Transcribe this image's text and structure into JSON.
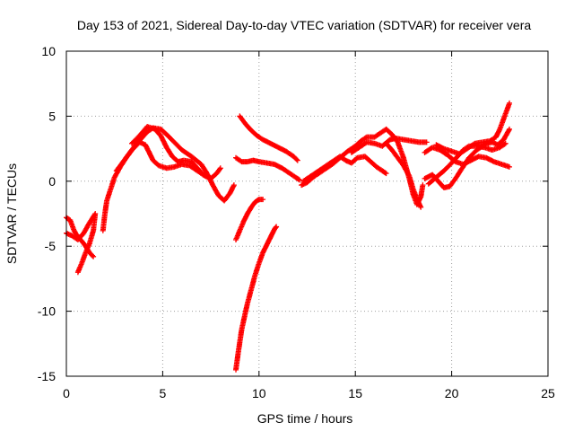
{
  "chart_data": {
    "type": "scatter",
    "title": "Day 153 of 2021, Sidereal Day-to-day VTEC variation (SDTVAR) for receiver vera",
    "xlabel": "GPS time / hours",
    "ylabel": "SDTVAR / TECUs",
    "xlim": [
      0,
      25
    ],
    "ylim": [
      -15,
      10
    ],
    "x_ticks": [
      0,
      5,
      10,
      15,
      20,
      25
    ],
    "x_tick_labels": [
      "0",
      "5",
      "10",
      "15",
      "20",
      "25"
    ],
    "y_ticks": [
      -15,
      -10,
      -5,
      0,
      5,
      10
    ],
    "y_tick_labels": [
      "-15",
      "-10",
      "-5",
      "0",
      "5",
      "10"
    ],
    "grid": true,
    "marker": "+",
    "color": "#ff0000",
    "series": [
      {
        "name": "arc-early-low",
        "points": [
          [
            0.0,
            -4.0
          ],
          [
            0.3,
            -4.2
          ],
          [
            0.6,
            -4.5
          ],
          [
            0.9,
            -4.0
          ],
          [
            1.2,
            -3.2
          ],
          [
            1.5,
            -2.5
          ],
          [
            1.4,
            -3.8
          ],
          [
            1.2,
            -4.8
          ],
          [
            1.0,
            -5.5
          ],
          [
            0.8,
            -6.3
          ],
          [
            0.6,
            -7.0
          ]
        ]
      },
      {
        "name": "arc-early-mid",
        "points": [
          [
            0.0,
            -2.8
          ],
          [
            0.2,
            -3.0
          ],
          [
            0.4,
            -3.8
          ],
          [
            0.6,
            -4.3
          ],
          [
            0.8,
            -4.6
          ],
          [
            1.0,
            -5.0
          ],
          [
            1.2,
            -5.5
          ],
          [
            1.4,
            -5.8
          ]
        ]
      },
      {
        "name": "arc-morning-rise",
        "points": [
          [
            1.9,
            -3.8
          ],
          [
            2.0,
            -2.5
          ],
          [
            2.1,
            -1.5
          ],
          [
            2.3,
            -0.6
          ],
          [
            2.5,
            0.3
          ],
          [
            2.8,
            1.1
          ],
          [
            3.1,
            1.8
          ],
          [
            3.5,
            2.6
          ],
          [
            3.9,
            3.3
          ],
          [
            4.2,
            3.8
          ],
          [
            4.5,
            4.1
          ],
          [
            4.9,
            4.0
          ],
          [
            5.2,
            3.6
          ],
          [
            5.6,
            3.0
          ],
          [
            6.0,
            2.4
          ],
          [
            6.5,
            1.9
          ],
          [
            7.0,
            1.3
          ],
          [
            7.3,
            0.6
          ],
          [
            7.6,
            -0.3
          ],
          [
            7.9,
            -1.1
          ],
          [
            8.2,
            -1.5
          ],
          [
            8.5,
            -0.9
          ],
          [
            8.7,
            -0.3
          ]
        ]
      },
      {
        "name": "arc-morning-loop",
        "points": [
          [
            2.6,
            0.8
          ],
          [
            3.0,
            1.6
          ],
          [
            3.4,
            2.4
          ],
          [
            3.8,
            3.0
          ],
          [
            4.1,
            2.8
          ],
          [
            4.3,
            2.2
          ],
          [
            4.5,
            1.6
          ],
          [
            4.8,
            1.2
          ],
          [
            5.2,
            1.0
          ],
          [
            5.6,
            1.1
          ],
          [
            6.0,
            1.3
          ],
          [
            6.4,
            1.2
          ],
          [
            6.8,
            0.8
          ],
          [
            7.2,
            0.4
          ],
          [
            7.5,
            0.2
          ],
          [
            7.8,
            0.6
          ],
          [
            8.0,
            1.0
          ]
        ]
      },
      {
        "name": "arc-morning-hump",
        "points": [
          [
            3.4,
            2.9
          ],
          [
            3.8,
            3.5
          ],
          [
            4.2,
            4.2
          ],
          [
            4.6,
            4.0
          ],
          [
            4.9,
            3.5
          ],
          [
            5.2,
            2.6
          ],
          [
            5.5,
            1.9
          ],
          [
            5.8,
            1.5
          ],
          [
            6.1,
            1.6
          ],
          [
            6.5,
            1.5
          ],
          [
            6.8,
            1.0
          ],
          [
            7.1,
            0.5
          ]
        ]
      },
      {
        "name": "arc-noon-drop",
        "points": [
          [
            8.8,
            -4.5
          ],
          [
            9.0,
            -3.8
          ],
          [
            9.2,
            -3.1
          ],
          [
            9.4,
            -2.5
          ],
          [
            9.6,
            -2.0
          ],
          [
            9.8,
            -1.6
          ],
          [
            10.0,
            -1.4
          ],
          [
            10.2,
            -1.4
          ]
        ]
      },
      {
        "name": "arc-noon-deep",
        "points": [
          [
            8.8,
            -14.5
          ],
          [
            8.9,
            -13.4
          ],
          [
            9.0,
            -12.4
          ],
          [
            9.1,
            -11.4
          ],
          [
            9.25,
            -10.4
          ],
          [
            9.4,
            -9.4
          ],
          [
            9.6,
            -8.3
          ],
          [
            9.8,
            -7.2
          ],
          [
            10.0,
            -6.3
          ],
          [
            10.2,
            -5.5
          ],
          [
            10.4,
            -4.9
          ],
          [
            10.6,
            -4.3
          ],
          [
            10.8,
            -3.7
          ],
          [
            10.9,
            -3.5
          ]
        ]
      },
      {
        "name": "arc-midday-descent",
        "points": [
          [
            9.0,
            5.0
          ],
          [
            9.3,
            4.4
          ],
          [
            9.6,
            3.9
          ],
          [
            9.9,
            3.5
          ],
          [
            10.2,
            3.2
          ],
          [
            10.6,
            2.9
          ],
          [
            11.0,
            2.6
          ],
          [
            11.4,
            2.3
          ],
          [
            11.8,
            1.9
          ],
          [
            12.0,
            1.6
          ]
        ]
      },
      {
        "name": "arc-midday-flat",
        "points": [
          [
            8.8,
            1.8
          ],
          [
            9.1,
            1.5
          ],
          [
            9.4,
            1.5
          ],
          [
            9.7,
            1.6
          ],
          [
            10.0,
            1.5
          ],
          [
            10.4,
            1.4
          ],
          [
            10.8,
            1.3
          ],
          [
            11.2,
            1.0
          ],
          [
            11.6,
            0.6
          ],
          [
            11.9,
            0.3
          ],
          [
            12.1,
            0.1
          ]
        ]
      },
      {
        "name": "arc-afternoon",
        "points": [
          [
            12.2,
            -0.3
          ],
          [
            12.5,
            -0.1
          ],
          [
            12.8,
            0.3
          ],
          [
            13.1,
            0.6
          ],
          [
            13.4,
            0.9
          ],
          [
            13.8,
            1.3
          ],
          [
            14.2,
            1.8
          ],
          [
            14.6,
            2.3
          ],
          [
            15.0,
            2.7
          ],
          [
            15.3,
            3.1
          ],
          [
            15.6,
            3.4
          ],
          [
            16.0,
            3.4
          ],
          [
            16.3,
            3.7
          ],
          [
            16.6,
            4.0
          ],
          [
            16.9,
            3.6
          ],
          [
            17.2,
            3.0
          ],
          [
            17.5,
            1.8
          ],
          [
            17.8,
            0.2
          ],
          [
            18.0,
            -1.0
          ],
          [
            18.2,
            -1.8
          ],
          [
            18.4,
            -1.2
          ],
          [
            18.5,
            -0.3
          ]
        ]
      },
      {
        "name": "arc-afternoon-lower",
        "points": [
          [
            12.3,
            0.0
          ],
          [
            12.7,
            0.4
          ],
          [
            13.1,
            0.8
          ],
          [
            13.5,
            1.2
          ],
          [
            13.9,
            1.6
          ],
          [
            14.2,
            1.9
          ],
          [
            14.5,
            1.6
          ],
          [
            14.8,
            1.4
          ],
          [
            15.1,
            1.8
          ],
          [
            15.5,
            1.9
          ],
          [
            15.8,
            1.5
          ],
          [
            16.1,
            1.1
          ],
          [
            16.4,
            0.8
          ],
          [
            16.6,
            0.6
          ]
        ]
      },
      {
        "name": "arc-afternoon-upper",
        "points": [
          [
            14.8,
            2.2
          ],
          [
            15.2,
            2.6
          ],
          [
            15.6,
            3.0
          ],
          [
            16.0,
            2.9
          ],
          [
            16.4,
            2.7
          ],
          [
            16.8,
            3.2
          ],
          [
            17.1,
            3.3
          ],
          [
            17.5,
            3.2
          ],
          [
            17.9,
            3.1
          ],
          [
            18.3,
            3.0
          ],
          [
            18.7,
            3.0
          ]
        ]
      },
      {
        "name": "arc-afternoon-fall",
        "points": [
          [
            16.6,
            2.9
          ],
          [
            16.9,
            2.4
          ],
          [
            17.2,
            1.8
          ],
          [
            17.5,
            1.2
          ],
          [
            17.8,
            0.4
          ],
          [
            18.0,
            -0.6
          ],
          [
            18.2,
            -1.4
          ],
          [
            18.4,
            -2.0
          ]
        ]
      },
      {
        "name": "arc-evening-1",
        "points": [
          [
            18.6,
            2.2
          ],
          [
            19.0,
            2.6
          ],
          [
            19.4,
            2.4
          ],
          [
            19.8,
            2.0
          ],
          [
            20.2,
            1.5
          ],
          [
            20.6,
            1.3
          ],
          [
            21.0,
            1.6
          ],
          [
            21.4,
            1.9
          ],
          [
            21.8,
            1.8
          ],
          [
            22.2,
            1.5
          ],
          [
            22.6,
            1.3
          ],
          [
            23.0,
            1.1
          ]
        ]
      },
      {
        "name": "arc-evening-2",
        "points": [
          [
            18.6,
            0.2
          ],
          [
            19.0,
            0.5
          ],
          [
            19.3,
            0.0
          ],
          [
            19.6,
            -0.5
          ],
          [
            19.9,
            -0.4
          ],
          [
            20.2,
            0.2
          ],
          [
            20.5,
            0.9
          ],
          [
            20.9,
            1.8
          ],
          [
            21.3,
            2.4
          ],
          [
            21.7,
            2.8
          ],
          [
            22.1,
            3.0
          ],
          [
            22.4,
            2.8
          ],
          [
            22.7,
            3.2
          ],
          [
            23.0,
            4.0
          ]
        ]
      },
      {
        "name": "arc-evening-3",
        "points": [
          [
            19.2,
            2.8
          ],
          [
            19.6,
            2.5
          ],
          [
            20.0,
            2.3
          ],
          [
            20.4,
            2.1
          ],
          [
            20.8,
            2.5
          ],
          [
            21.2,
            2.9
          ],
          [
            21.6,
            3.0
          ],
          [
            22.0,
            3.1
          ],
          [
            22.3,
            3.4
          ],
          [
            22.5,
            4.0
          ],
          [
            22.7,
            4.8
          ],
          [
            22.9,
            5.6
          ],
          [
            23.0,
            6.0
          ]
        ]
      },
      {
        "name": "arc-evening-4",
        "points": [
          [
            18.8,
            -0.2
          ],
          [
            19.2,
            0.3
          ],
          [
            19.6,
            0.8
          ],
          [
            20.0,
            1.4
          ],
          [
            20.3,
            1.9
          ],
          [
            20.6,
            2.4
          ],
          [
            20.9,
            2.7
          ],
          [
            21.3,
            2.7
          ],
          [
            21.7,
            2.6
          ],
          [
            22.1,
            2.4
          ],
          [
            22.5,
            2.6
          ],
          [
            22.8,
            2.9
          ]
        ]
      }
    ]
  }
}
